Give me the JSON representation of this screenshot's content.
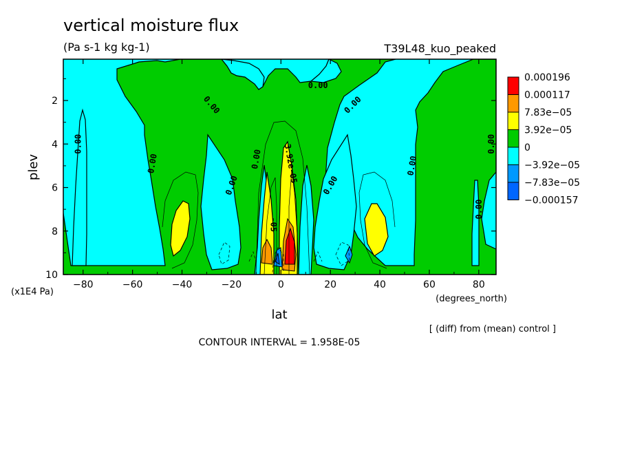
{
  "chart_data": {
    "type": "contour",
    "title": "vertical moisture flux",
    "units": "(Pa s-1 kg kg-1)",
    "run_label": "T39L48_kuo_peaked",
    "xlabel": "lat",
    "xunits": "(degrees_north)",
    "ylabel": "plev",
    "yunits": "(x1E4 Pa)",
    "xlim": [
      -88,
      87
    ],
    "ylim": [
      10,
      0.1
    ],
    "x_ticks": [
      -80,
      -60,
      -40,
      -20,
      0,
      20,
      40,
      60,
      80
    ],
    "y_ticks": [
      2,
      4,
      6,
      8,
      10
    ],
    "contour_interval_text": "CONTOUR INTERVAL = 1.958E-05",
    "footnote": "[ (diff) from (mean) control ]",
    "legend": [
      {
        "label": "0.000196",
        "color": "#ff0000"
      },
      {
        "label": "0.000117",
        "color": "#ff9900"
      },
      {
        "label": "7.83e-05",
        "color": "#ffff00"
      },
      {
        "label": "3.92e-05",
        "color": "#00cc00"
      },
      {
        "label": "0",
        "color": "#00ffff"
      },
      {
        "label": "-3.92e-05",
        "color": "#0099ff"
      },
      {
        "label": "-7.83e-05",
        "color": "#0066ff"
      },
      {
        "label": "-0.000157",
        "color": ""
      }
    ],
    "contour_labels": [
      {
        "text": "0.00",
        "lat": -82,
        "plev": 4.0,
        "rot": -90
      },
      {
        "text": "0.00",
        "lat": -52,
        "plev": 4.9,
        "rot": -80
      },
      {
        "text": "0.00",
        "lat": -28,
        "plev": 2.2,
        "rot": 50
      },
      {
        "text": "0.00",
        "lat": -20,
        "plev": 5.9,
        "rot": -70
      },
      {
        "text": "0.00",
        "lat": -10,
        "plev": 4.7,
        "rot": -80
      },
      {
        "text": "0.00",
        "lat": 15,
        "plev": 1.3,
        "rot": 0
      },
      {
        "text": "0.00",
        "lat": 29,
        "plev": 2.2,
        "rot": -45
      },
      {
        "text": "0.00",
        "lat": 20,
        "plev": 5.9,
        "rot": -60
      },
      {
        "text": "0.00",
        "lat": 53,
        "plev": 5.0,
        "rot": -80
      },
      {
        "text": "0.00",
        "lat": 80,
        "plev": 7.0,
        "rot": -90
      },
      {
        "text": "0.00",
        "lat": 85,
        "plev": 4.0,
        "rot": -90
      },
      {
        "text": "3.92e-05",
        "lat": 4,
        "plev": 4.9,
        "rot": 80
      },
      {
        "text": "-05",
        "lat": -3,
        "plev": 7.7,
        "rot": 90
      }
    ]
  }
}
